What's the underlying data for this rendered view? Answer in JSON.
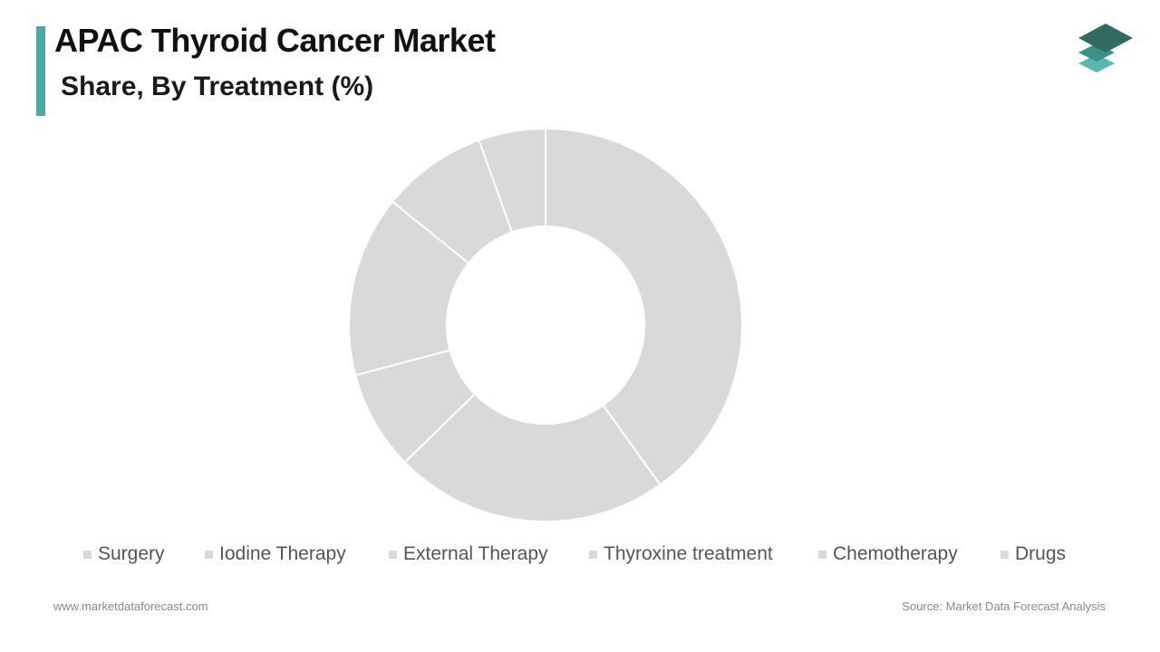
{
  "header": {
    "title": "APAC Thyroid Cancer Market",
    "subtitle": "Share, By Treatment (%)"
  },
  "colors": {
    "accent": "#4aa9a4",
    "slice_fill": "#d9d9d9",
    "slice_stroke": "#ffffff",
    "logo_top": "#2f6b61",
    "logo_mid": "#3f8f84",
    "logo_bottom": "#56b8b0"
  },
  "logo": {
    "icon": "layered-stack-icon"
  },
  "chart_data": {
    "type": "pie",
    "donut": true,
    "title": "",
    "categories": [
      "Surgery",
      "Iodine Therapy",
      "External Therapy",
      "Thyroxine treatment",
      "Chemotherapy",
      "Drugs"
    ],
    "values": [
      40.1,
      22.6,
      8.2,
      14.9,
      8.7,
      5.5
    ],
    "unit": "%",
    "legend_position": "bottom",
    "data_labels": false
  },
  "footer": {
    "website": "www.marketdataforecast.com",
    "source": "Source: Market Data Forecast Analysis"
  }
}
